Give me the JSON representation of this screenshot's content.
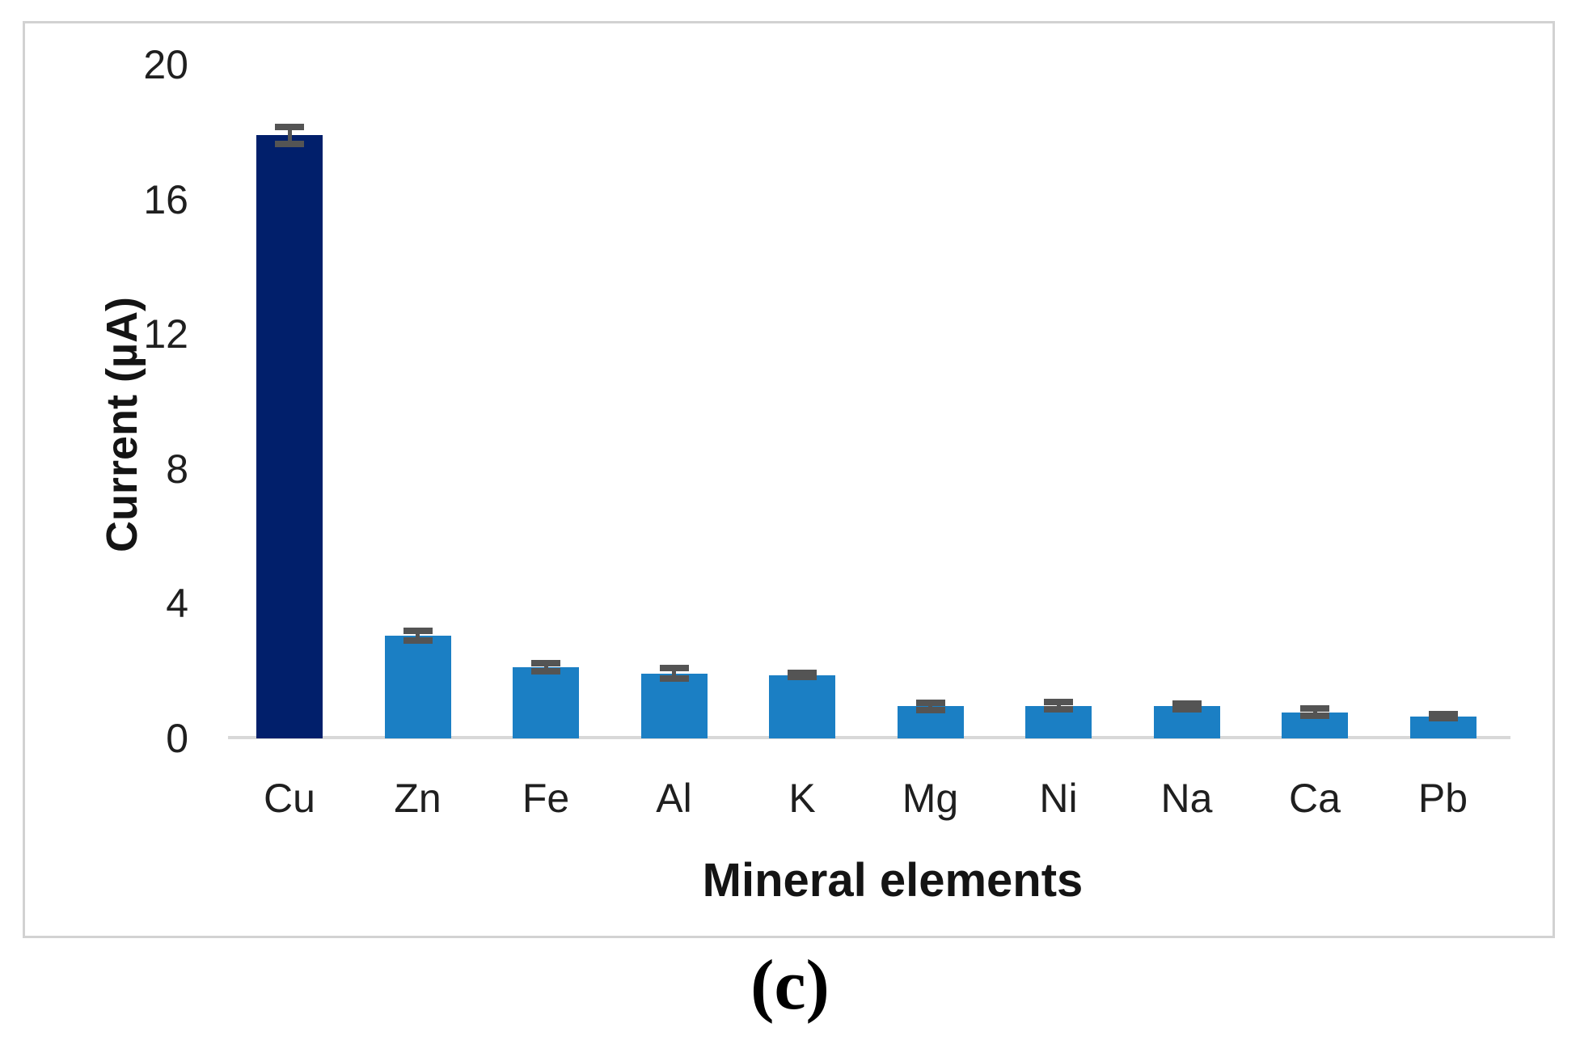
{
  "figure": {
    "caption": "(c)"
  },
  "chart_data": {
    "type": "bar",
    "title": "",
    "xlabel": "Mineral elements",
    "ylabel": "Current (µA)",
    "categories": [
      "Cu",
      "Zn",
      "Fe",
      "Al",
      "K",
      "Mg",
      "Ni",
      "Na",
      "Ca",
      "Pb"
    ],
    "values": [
      17.9,
      3.05,
      2.12,
      1.93,
      1.88,
      0.95,
      0.97,
      0.95,
      0.78,
      0.65
    ],
    "errors": [
      0.25,
      0.15,
      0.12,
      0.15,
      0.06,
      0.1,
      0.1,
      0.08,
      0.1,
      0.06
    ],
    "ylim": [
      0,
      20
    ],
    "yticks": [
      0,
      4,
      8,
      12,
      16,
      20
    ],
    "grid": false,
    "legend": false,
    "colors": {
      "highlight_bar": "#011f6b",
      "default_bar": "#1b7fc4",
      "highlight_category": "Cu",
      "error_bar": "#545454",
      "axis_line": "#d8d8d8",
      "frame_border": "#d2d2d2",
      "text": "#1f1f1f"
    }
  }
}
